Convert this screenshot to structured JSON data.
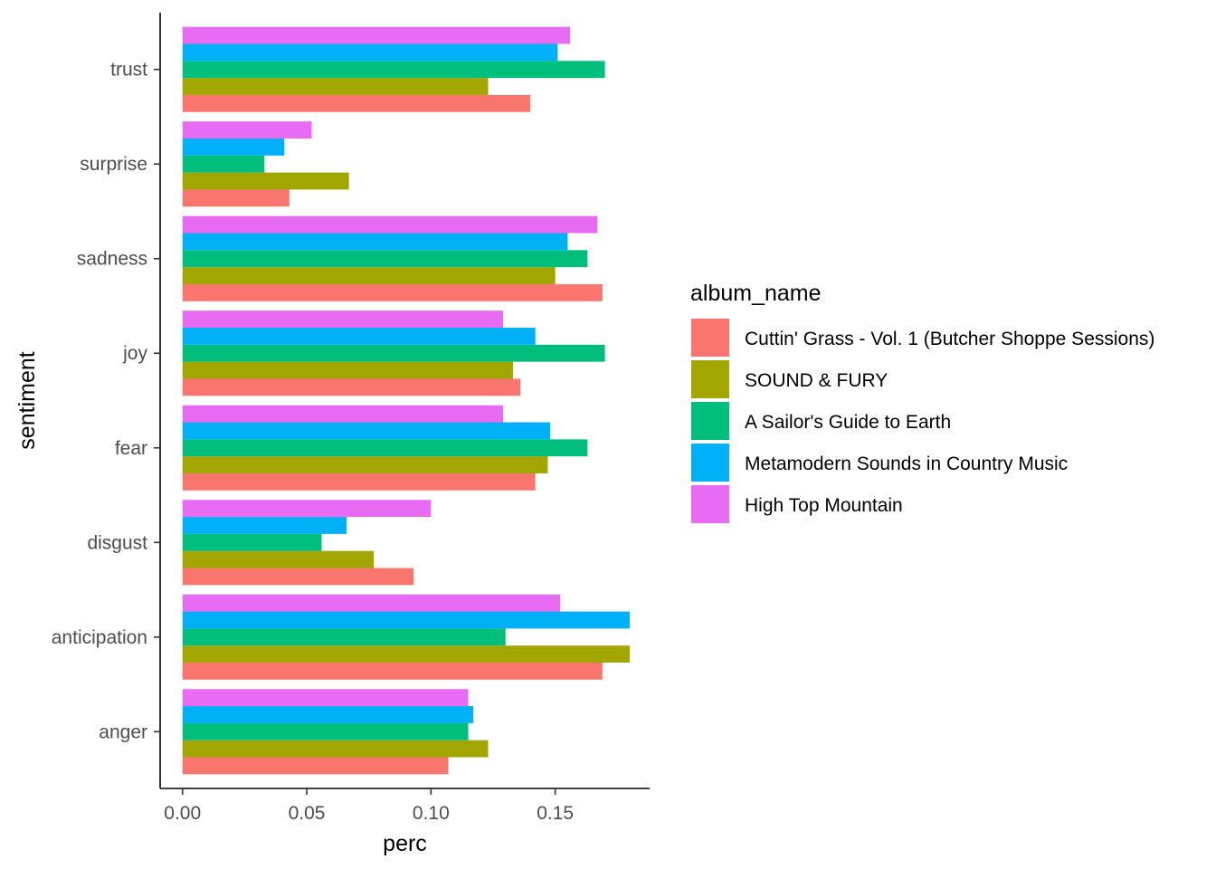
{
  "chart_data": {
    "type": "bar",
    "orientation": "horizontal",
    "xlabel": "perc",
    "ylabel": "sentiment",
    "xlim": [
      -0.009,
      0.188
    ],
    "x_ticks": [
      "0.00",
      "0.05",
      "0.10",
      "0.15"
    ],
    "x_tick_values": [
      0.0,
      0.05,
      0.1,
      0.15
    ],
    "grid": false,
    "categories": [
      "anger",
      "anticipation",
      "disgust",
      "fear",
      "joy",
      "sadness",
      "surprise",
      "trust"
    ],
    "legend": {
      "title": "album_name",
      "position": "right"
    },
    "series": [
      {
        "name": "Cuttin' Grass - Vol. 1 (Butcher Shoppe Sessions)",
        "color": "#F8766D",
        "values": [
          0.107,
          0.169,
          0.093,
          0.142,
          0.136,
          0.169,
          0.043,
          0.14
        ]
      },
      {
        "name": "SOUND & FURY",
        "color": "#A3A500",
        "values": [
          0.123,
          0.18,
          0.077,
          0.147,
          0.133,
          0.15,
          0.067,
          0.123
        ]
      },
      {
        "name": "A Sailor's Guide to Earth",
        "color": "#00BF7D",
        "values": [
          0.115,
          0.13,
          0.056,
          0.163,
          0.17,
          0.163,
          0.033,
          0.17
        ]
      },
      {
        "name": "Metamodern Sounds in Country Music",
        "color": "#00B0F6",
        "values": [
          0.117,
          0.18,
          0.066,
          0.148,
          0.142,
          0.155,
          0.041,
          0.151
        ]
      },
      {
        "name": "High Top Mountain",
        "color": "#E76BF3",
        "values": [
          0.115,
          0.152,
          0.1,
          0.129,
          0.129,
          0.167,
          0.052,
          0.156
        ]
      }
    ]
  }
}
